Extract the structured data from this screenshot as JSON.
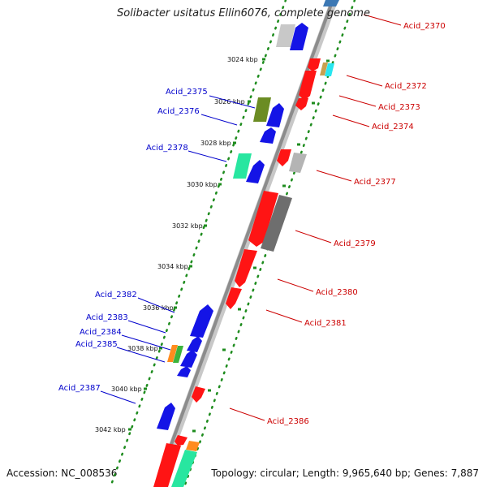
{
  "title": "Solibacter usitatus Ellin6076, complete genome",
  "footer": {
    "accession": "Accession: NC_008536",
    "topology": "Topology: circular; Length: 9,965,640 bp; Genes: 7,887"
  },
  "colors": {
    "forward_label": "#0000cc",
    "reverse_label": "#cc0000",
    "backbone": "#8c8c8c",
    "tick_dots": "#1e8c1e"
  },
  "kbp_ticks": [
    "3024 kbp",
    "3026 kbp",
    "3028 kbp",
    "3030 kbp",
    "3032 kbp",
    "3034 kbp",
    "3036 kbp",
    "3038 kbp",
    "3040 kbp",
    "3042 kbp"
  ],
  "forward_labels": [
    "Acid_2375",
    "Acid_2376",
    "Acid_2378",
    "Acid_2382",
    "Acid_2383",
    "Acid_2384",
    "Acid_2385",
    "Acid_2387"
  ],
  "reverse_labels": [
    "Acid_2370",
    "Acid_2372",
    "Acid_2373",
    "Acid_2374",
    "Acid_2377",
    "Acid_2379",
    "Acid_2380",
    "Acid_2381",
    "Acid_2386"
  ]
}
